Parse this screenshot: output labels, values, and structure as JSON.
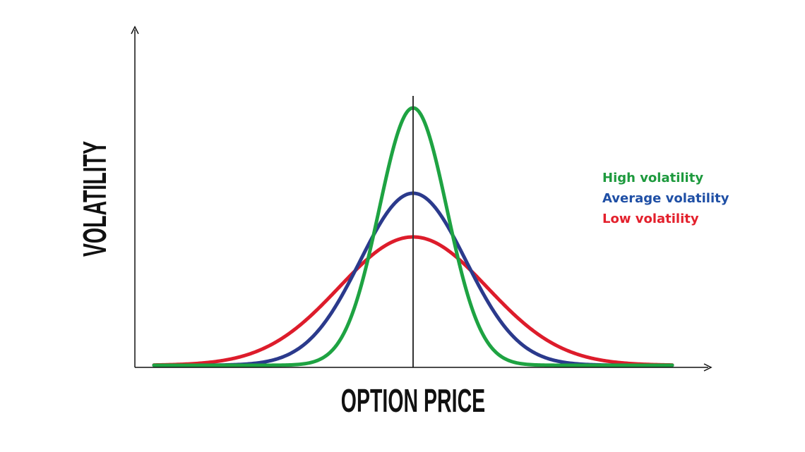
{
  "y_axis_label": "VOLATILITY",
  "x_axis_label": "OPTION PRICE",
  "legend": [
    {
      "label": "High volatility"
    },
    {
      "label": "Average volatility"
    },
    {
      "label": "Low volatility"
    }
  ]
}
